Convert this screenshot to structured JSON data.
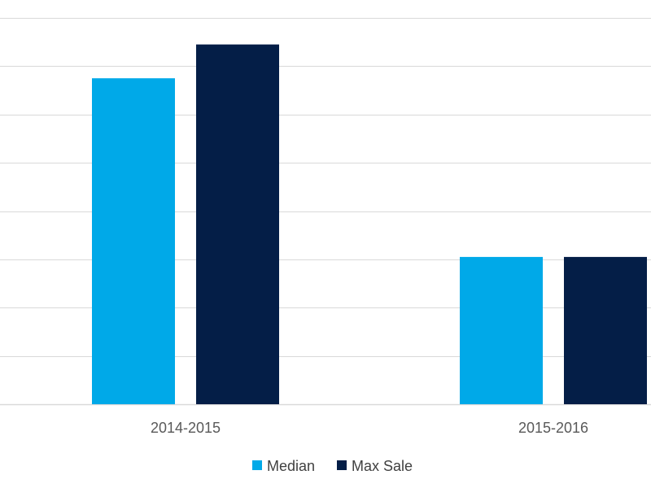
{
  "chart_data": {
    "type": "bar",
    "categories": [
      "2014-2015",
      "2015-2016"
    ],
    "series": [
      {
        "name": "Median",
        "color": "#00a9e8",
        "values": [
          6.75,
          3.05
        ]
      },
      {
        "name": "Max Sale",
        "color": "#041e47",
        "values": [
          7.45,
          3.05
        ]
      }
    ],
    "ylim": [
      0,
      8
    ],
    "grid": true,
    "legend_position": "bottom",
    "gridline_color": "#d9d9d9"
  }
}
